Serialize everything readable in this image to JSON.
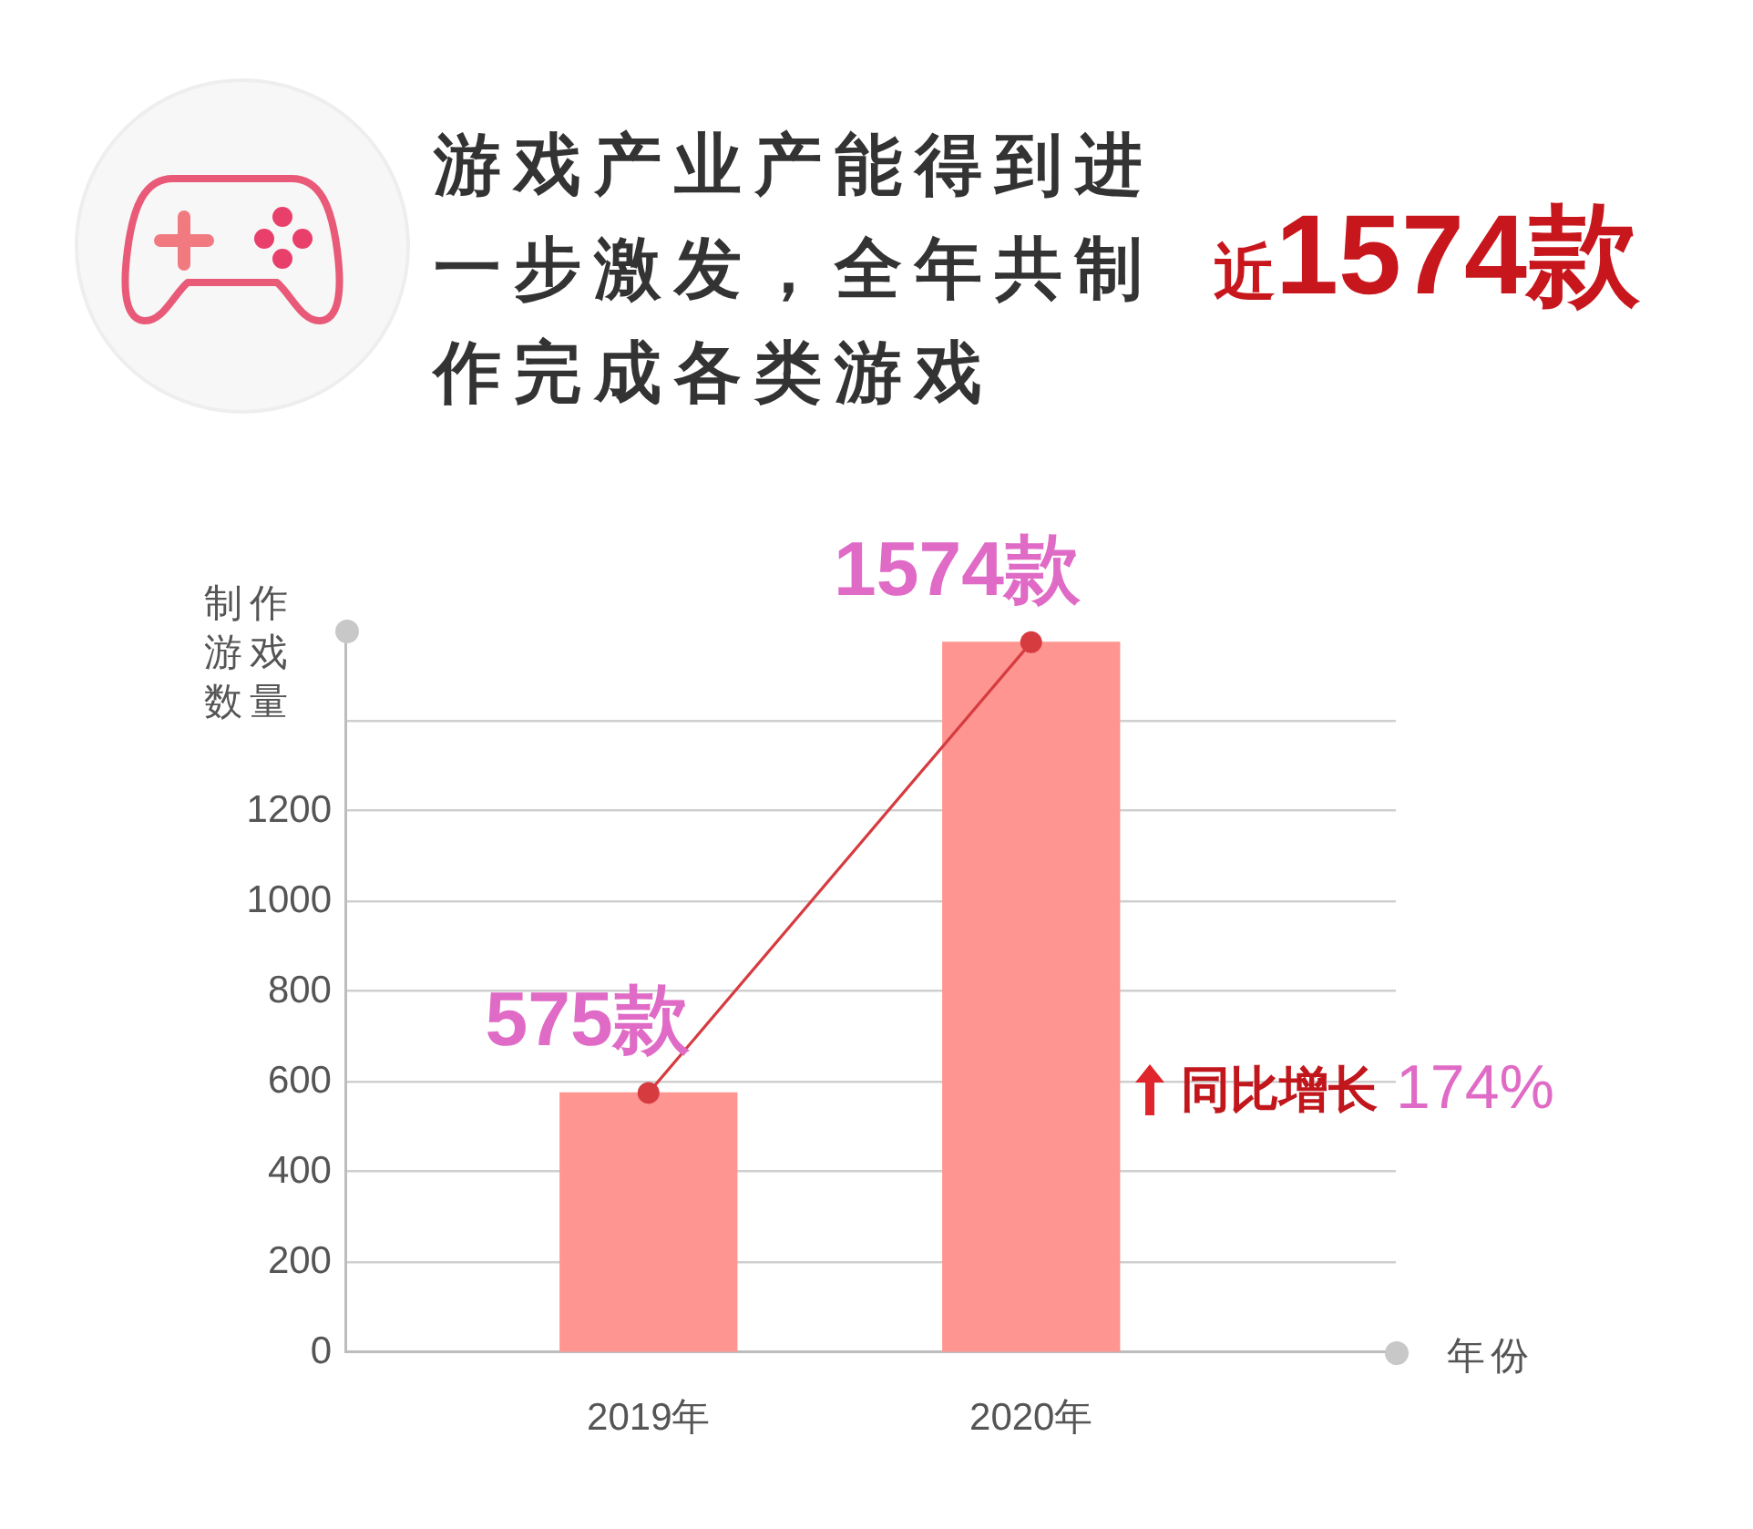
{
  "chart_data": {
    "type": "bar",
    "title": "游戏产业产能得到进一步激发，全年共制作完成各类游戏",
    "subtitle": "近1574款",
    "ylabel": "制作游戏数量",
    "xlabel": "年份",
    "annotations": [
      "同比增长",
      "174%"
    ],
    "categories": [
      "2019年",
      "2020年"
    ],
    "series": [
      {
        "color": "#fe9590",
        "values": [
          575,
          1574
        ],
        "value_labels": [
          "575款",
          "1574款"
        ]
      },
      {
        "type": "line",
        "color": "#d63b40",
        "values": [
          575,
          1574
        ]
      }
    ],
    "ylim": [
      0,
      1600
    ],
    "yticks": [
      0,
      200,
      400,
      600,
      800,
      1000,
      1200,
      {
        "value": 1400,
        "label": null
      }
    ],
    "grid": "y",
    "marker": "circle"
  }
}
